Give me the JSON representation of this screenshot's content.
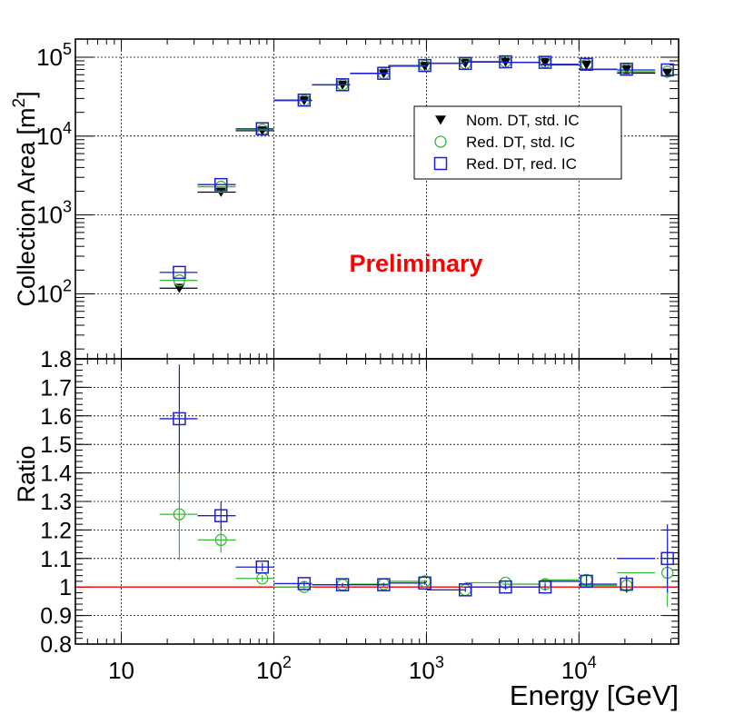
{
  "chart_data": [
    {
      "type": "scatter",
      "panel": "top",
      "xlabel": "",
      "ylabel": "Collection Area [m",
      "ylabel_sup": "2",
      "ylabel_close": "]",
      "x_scale": "log",
      "y_scale": "log",
      "xlim": [
        5,
        45000
      ],
      "ylim": [
        15,
        170000
      ],
      "grid": true,
      "ytick_labels": [
        {
          "value": 100,
          "base": "10",
          "exp": "2"
        },
        {
          "value": 1000,
          "base": "10",
          "exp": "3"
        },
        {
          "value": 10000,
          "base": "10",
          "exp": "4"
        },
        {
          "value": 100000,
          "base": "10",
          "exp": "5"
        }
      ],
      "annotation": {
        "text": "Preliminary",
        "color": "#ff0000"
      },
      "legend": {
        "placement": "top-right",
        "entries": [
          {
            "label": "Nom. DT, std. IC",
            "marker": "filled-triangle-down",
            "color": "#000000"
          },
          {
            "label": "Red. DT, std. IC",
            "marker": "open-circle",
            "color": "#3cb83c"
          },
          {
            "label": "Red. DT, red. IC",
            "marker": "open-square",
            "color": "#1f1fcc"
          }
        ]
      },
      "bin_edges": [
        17.8,
        31.6,
        56.2,
        100,
        177.8,
        316.2,
        562.3,
        1000,
        1778,
        3162,
        5623,
        10000,
        17783,
        31623,
        45000
      ],
      "x": [
        24,
        45,
        84,
        158,
        282,
        525,
        976,
        1800,
        3300,
        6000,
        11200,
        20500,
        38000
      ],
      "series": [
        {
          "name": "Nom. DT, std. IC",
          "color": "#000000",
          "marker": "filled-triangle-down",
          "values": [
            118,
            1950,
            11700,
            28200,
            44500,
            62000,
            77000,
            84000,
            87000,
            86000,
            80000,
            70000,
            63000
          ]
        },
        {
          "name": "Red. DT, std. IC",
          "color": "#3cb83c",
          "marker": "open-circle",
          "values": [
            148,
            2280,
            12000,
            28300,
            44700,
            62200,
            77800,
            83800,
            88000,
            86500,
            81000,
            70500,
            65500
          ]
        },
        {
          "name": "Red. DT, red. IC",
          "color": "#1f1fcc",
          "marker": "open-square",
          "values": [
            187,
            2430,
            12400,
            28600,
            44800,
            62600,
            78500,
            83500,
            87500,
            86200,
            81500,
            70500,
            69000
          ]
        }
      ]
    },
    {
      "type": "scatter",
      "panel": "bottom",
      "xlabel": "Energy [GeV]",
      "ylabel": "Ratio",
      "x_scale": "log",
      "xlim": [
        5,
        45000
      ],
      "ylim": [
        0.8,
        1.8
      ],
      "grid": true,
      "yticks": [
        "0.8",
        "0.9",
        "1",
        "1.1",
        "1.2",
        "1.3",
        "1.4",
        "1.5",
        "1.6",
        "1.7",
        "1.8"
      ],
      "xtick_labels": [
        {
          "value": 10,
          "base": "10",
          "exp": ""
        },
        {
          "value": 100,
          "base": "10",
          "exp": "2"
        },
        {
          "value": 1000,
          "base": "10",
          "exp": "3"
        },
        {
          "value": 10000,
          "base": "10",
          "exp": "4"
        }
      ],
      "reference_line": {
        "y": 1.0,
        "color": "#ff0000"
      },
      "bin_edges": [
        17.8,
        31.6,
        56.2,
        100,
        177.8,
        316.2,
        562.3,
        1000,
        1778,
        3162,
        5623,
        10000,
        17783,
        31623,
        45000
      ],
      "x": [
        24,
        45,
        84,
        158,
        282,
        525,
        976,
        1800,
        3300,
        6000,
        11200,
        20500,
        38000
      ],
      "series": [
        {
          "name": "Red. DT, std. IC",
          "color": "#3cb83c",
          "marker": "open-circle",
          "values": [
            1.255,
            1.165,
            1.03,
            1.0,
            1.008,
            1.01,
            1.02,
            0.99,
            1.015,
            1.01,
            1.025,
            1.005,
            1.05
          ],
          "errors": [
            0.16,
            0.045,
            0.012,
            0.008,
            0.006,
            0.005,
            0.006,
            0.007,
            0.009,
            0.012,
            0.02,
            0.025,
            0.12
          ]
        },
        {
          "name": "Red. DT, red. IC",
          "color": "#1f1fcc",
          "marker": "open-square",
          "values": [
            1.59,
            1.25,
            1.07,
            1.012,
            1.008,
            1.008,
            1.014,
            0.99,
            1.0,
            1.0,
            1.02,
            1.01,
            1.1
          ],
          "errors": [
            0.19,
            0.05,
            0.015,
            0.008,
            0.006,
            0.005,
            0.006,
            0.007,
            0.009,
            0.012,
            0.02,
            0.03,
            0.12
          ]
        }
      ]
    }
  ]
}
